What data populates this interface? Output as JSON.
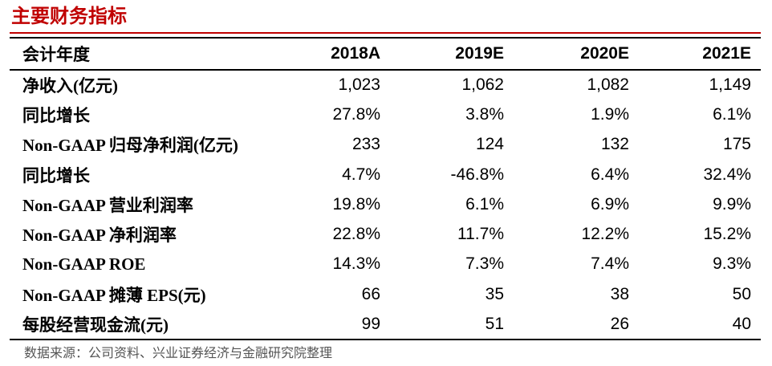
{
  "title": "主要财务指标",
  "table": {
    "headers": [
      "会计年度",
      "2018A",
      "2019E",
      "2020E",
      "2021E"
    ],
    "rows": [
      {
        "label": "净收入(亿元)",
        "values": [
          "1,023",
          "1,062",
          "1,082",
          "1,149"
        ]
      },
      {
        "label": "同比增长",
        "values": [
          "27.8%",
          "3.8%",
          "1.9%",
          "6.1%"
        ]
      },
      {
        "label": "Non-GAAP 归母净利润(亿元)",
        "values": [
          "233",
          "124",
          "132",
          "175"
        ]
      },
      {
        "label": "同比增长",
        "values": [
          "4.7%",
          "-46.8%",
          "6.4%",
          "32.4%"
        ]
      },
      {
        "label": "Non-GAAP 营业利润率",
        "values": [
          "19.8%",
          "6.1%",
          "6.9%",
          "9.9%"
        ]
      },
      {
        "label": "Non-GAAP 净利润率",
        "values": [
          "22.8%",
          "11.7%",
          "12.2%",
          "15.2%"
        ]
      },
      {
        "label": "Non-GAAP ROE",
        "values": [
          "14.3%",
          "7.3%",
          "7.4%",
          "9.3%"
        ]
      },
      {
        "label": "Non-GAAP 摊薄 EPS(元)",
        "values": [
          "66",
          "35",
          "38",
          "50"
        ]
      },
      {
        "label": "每股经营现金流(元)",
        "values": [
          "99",
          "51",
          "26",
          "40"
        ]
      }
    ]
  },
  "source": "数据来源：公司资料、兴业证券经济与金融研究院整理",
  "colors": {
    "title": "#c00000",
    "rule": "#c00000",
    "source": "#555555"
  }
}
